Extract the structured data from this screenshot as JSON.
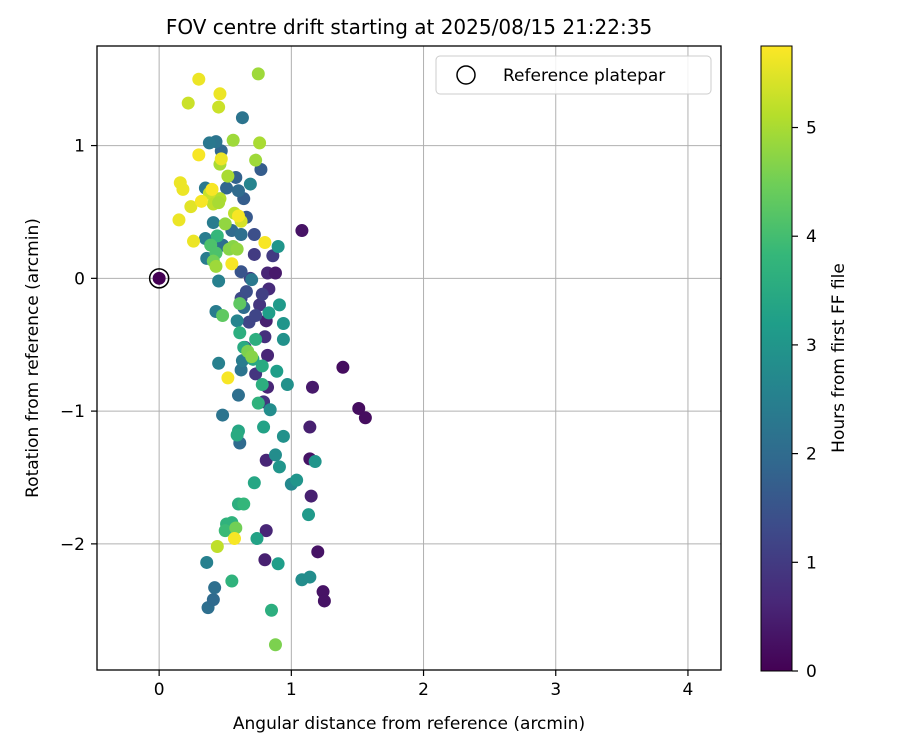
{
  "chart_data": {
    "type": "scatter",
    "title": "FOV centre drift starting at 2025/08/15 21:22:35",
    "xlabel": "Angular distance from reference (arcmin)",
    "ylabel": "Rotation from reference (arcmin)",
    "xlim": [
      -0.47,
      4.25
    ],
    "ylim": [
      -2.95,
      1.75
    ],
    "xticks": [
      0,
      1,
      2,
      3,
      4
    ],
    "yticks": [
      -2,
      -1,
      0,
      1
    ],
    "ytick_labels": [
      "−2",
      "−1",
      "0",
      "1"
    ],
    "grid": true,
    "legend": {
      "label": "Reference platepar",
      "placement": "top-right"
    },
    "reference_point": {
      "x": 0,
      "y": 0
    },
    "colorbar": {
      "label": "Hours from first FF file",
      "colormap": "viridis",
      "min": 0,
      "max": 5.75,
      "ticks": [
        0,
        1,
        2,
        3,
        4,
        5
      ]
    },
    "points": [
      {
        "x": 1.08,
        "y": 0.36,
        "c": 0.3
      },
      {
        "x": 1.39,
        "y": -0.67,
        "c": 0.2
      },
      {
        "x": 1.51,
        "y": -0.98,
        "c": 0.2
      },
      {
        "x": 1.56,
        "y": -1.05,
        "c": 0.2
      },
      {
        "x": 1.16,
        "y": -0.82,
        "c": 0.4
      },
      {
        "x": 1.14,
        "y": -1.12,
        "c": 0.5
      },
      {
        "x": 1.14,
        "y": -1.36,
        "c": 0.3
      },
      {
        "x": 1.15,
        "y": -1.64,
        "c": 0.5
      },
      {
        "x": 1.2,
        "y": -2.06,
        "c": 0.3
      },
      {
        "x": 1.24,
        "y": -2.36,
        "c": 0.3
      },
      {
        "x": 1.25,
        "y": -2.43,
        "c": 0.3
      },
      {
        "x": 0.81,
        "y": -1.37,
        "c": 0.6
      },
      {
        "x": 0.81,
        "y": -1.9,
        "c": 0.6
      },
      {
        "x": 0.8,
        "y": -2.12,
        "c": 0.5
      },
      {
        "x": 0.82,
        "y": 0.04,
        "c": 0.6
      },
      {
        "x": 0.88,
        "y": 0.04,
        "c": 0.4
      },
      {
        "x": 0.81,
        "y": -0.32,
        "c": 0.5
      },
      {
        "x": 0.82,
        "y": -0.58,
        "c": 0.6
      },
      {
        "x": 0.8,
        "y": -0.44,
        "c": 0.8
      },
      {
        "x": 0.79,
        "y": -0.93,
        "c": 0.9
      },
      {
        "x": 0.82,
        "y": -0.82,
        "c": 0.6
      },
      {
        "x": 0.73,
        "y": -0.72,
        "c": 0.9
      },
      {
        "x": 0.76,
        "y": -0.2,
        "c": 0.9
      },
      {
        "x": 0.83,
        "y": -0.08,
        "c": 0.7
      },
      {
        "x": 0.72,
        "y": 0.18,
        "c": 1.0
      },
      {
        "x": 0.69,
        "y": 0.0,
        "c": 1.0
      },
      {
        "x": 0.78,
        "y": -0.12,
        "c": 1.1
      },
      {
        "x": 0.86,
        "y": 0.17,
        "c": 1.0
      },
      {
        "x": 0.68,
        "y": -0.33,
        "c": 1.2
      },
      {
        "x": 0.73,
        "y": -0.28,
        "c": 1.2
      },
      {
        "x": 0.65,
        "y": -0.52,
        "c": 1.3
      },
      {
        "x": 0.62,
        "y": -0.15,
        "c": 1.3
      },
      {
        "x": 0.66,
        "y": -0.1,
        "c": 1.4
      },
      {
        "x": 0.62,
        "y": 0.05,
        "c": 1.5
      },
      {
        "x": 0.72,
        "y": 0.33,
        "c": 1.4
      },
      {
        "x": 0.66,
        "y": 0.46,
        "c": 1.6
      },
      {
        "x": 0.64,
        "y": 0.6,
        "c": 1.7
      },
      {
        "x": 0.77,
        "y": 0.82,
        "c": 1.7
      },
      {
        "x": 0.58,
        "y": 0.76,
        "c": 1.8
      },
      {
        "x": 0.51,
        "y": 0.68,
        "c": 1.9
      },
      {
        "x": 0.47,
        "y": 0.96,
        "c": 1.9
      },
      {
        "x": 0.6,
        "y": 0.66,
        "c": 2.0
      },
      {
        "x": 0.55,
        "y": 0.36,
        "c": 2.0
      },
      {
        "x": 0.48,
        "y": 0.25,
        "c": 2.1
      },
      {
        "x": 0.62,
        "y": 0.33,
        "c": 2.1
      },
      {
        "x": 0.63,
        "y": 1.21,
        "c": 2.2
      },
      {
        "x": 0.43,
        "y": 1.03,
        "c": 2.2
      },
      {
        "x": 0.38,
        "y": 1.02,
        "c": 2.3
      },
      {
        "x": 0.35,
        "y": 0.68,
        "c": 2.3
      },
      {
        "x": 0.41,
        "y": 0.42,
        "c": 2.4
      },
      {
        "x": 0.35,
        "y": 0.3,
        "c": 2.4
      },
      {
        "x": 0.36,
        "y": 0.15,
        "c": 2.4
      },
      {
        "x": 0.45,
        "y": -0.02,
        "c": 2.5
      },
      {
        "x": 0.43,
        "y": -0.25,
        "c": 2.4
      },
      {
        "x": 0.45,
        "y": -0.64,
        "c": 2.5
      },
      {
        "x": 0.48,
        "y": -1.03,
        "c": 2.2
      },
      {
        "x": 0.6,
        "y": -0.88,
        "c": 2.1
      },
      {
        "x": 0.61,
        "y": -1.24,
        "c": 2.0
      },
      {
        "x": 0.62,
        "y": -0.69,
        "c": 2.2
      },
      {
        "x": 0.64,
        "y": -0.22,
        "c": 2.0
      },
      {
        "x": 0.59,
        "y": -0.32,
        "c": 2.6
      },
      {
        "x": 0.7,
        "y": -0.01,
        "c": 2.3
      },
      {
        "x": 0.63,
        "y": -0.62,
        "c": 2.4
      },
      {
        "x": 0.69,
        "y": 0.71,
        "c": 2.6
      },
      {
        "x": 0.36,
        "y": -2.14,
        "c": 2.5
      },
      {
        "x": 0.37,
        "y": -2.48,
        "c": 2.1
      },
      {
        "x": 0.41,
        "y": -2.42,
        "c": 2.0
      },
      {
        "x": 0.42,
        "y": -2.33,
        "c": 2.1
      },
      {
        "x": 0.84,
        "y": -0.99,
        "c": 2.8
      },
      {
        "x": 0.88,
        "y": -1.33,
        "c": 2.8
      },
      {
        "x": 0.94,
        "y": -1.19,
        "c": 2.9
      },
      {
        "x": 0.91,
        "y": -1.42,
        "c": 3.0
      },
      {
        "x": 0.97,
        "y": -0.8,
        "c": 2.9
      },
      {
        "x": 0.94,
        "y": -0.46,
        "c": 2.9
      },
      {
        "x": 0.94,
        "y": -0.34,
        "c": 3.0
      },
      {
        "x": 0.91,
        "y": -0.2,
        "c": 3.1
      },
      {
        "x": 0.83,
        "y": -0.26,
        "c": 3.2
      },
      {
        "x": 0.9,
        "y": 0.24,
        "c": 3.0
      },
      {
        "x": 0.89,
        "y": -0.7,
        "c": 3.2
      },
      {
        "x": 1.0,
        "y": -1.55,
        "c": 2.7
      },
      {
        "x": 1.04,
        "y": -1.52,
        "c": 3.0
      },
      {
        "x": 1.18,
        "y": -1.38,
        "c": 3.0
      },
      {
        "x": 1.13,
        "y": -1.78,
        "c": 3.1
      },
      {
        "x": 1.08,
        "y": -2.27,
        "c": 2.8
      },
      {
        "x": 1.14,
        "y": -2.25,
        "c": 2.8
      },
      {
        "x": 0.9,
        "y": -2.15,
        "c": 3.2
      },
      {
        "x": 0.74,
        "y": -1.96,
        "c": 3.3
      },
      {
        "x": 0.72,
        "y": -1.54,
        "c": 3.4
      },
      {
        "x": 0.79,
        "y": -1.12,
        "c": 3.3
      },
      {
        "x": 0.6,
        "y": -1.15,
        "c": 3.4
      },
      {
        "x": 0.59,
        "y": -1.18,
        "c": 3.5
      },
      {
        "x": 0.71,
        "y": -0.61,
        "c": 3.4
      },
      {
        "x": 0.73,
        "y": -0.46,
        "c": 3.6
      },
      {
        "x": 0.78,
        "y": -0.66,
        "c": 3.5
      },
      {
        "x": 0.78,
        "y": -0.8,
        "c": 3.6
      },
      {
        "x": 0.75,
        "y": -0.94,
        "c": 3.7
      },
      {
        "x": 0.61,
        "y": -0.41,
        "c": 3.6
      },
      {
        "x": 0.64,
        "y": -0.52,
        "c": 3.5
      },
      {
        "x": 0.6,
        "y": -1.7,
        "c": 3.6
      },
      {
        "x": 0.64,
        "y": -1.7,
        "c": 3.8
      },
      {
        "x": 0.55,
        "y": -1.84,
        "c": 3.7
      },
      {
        "x": 0.51,
        "y": -1.85,
        "c": 3.7
      },
      {
        "x": 0.5,
        "y": -1.9,
        "c": 3.9
      },
      {
        "x": 0.58,
        "y": -1.88,
        "c": 4.5
      },
      {
        "x": 0.55,
        "y": -2.28,
        "c": 3.7
      },
      {
        "x": 0.85,
        "y": -2.5,
        "c": 3.6
      },
      {
        "x": 0.88,
        "y": -2.76,
        "c": 4.6
      },
      {
        "x": 0.48,
        "y": -0.28,
        "c": 4.3
      },
      {
        "x": 0.61,
        "y": -0.19,
        "c": 4.3
      },
      {
        "x": 0.67,
        "y": -0.55,
        "c": 4.6
      },
      {
        "x": 0.7,
        "y": -0.59,
        "c": 4.7
      },
      {
        "x": 0.44,
        "y": 0.32,
        "c": 3.8
      },
      {
        "x": 0.39,
        "y": 0.25,
        "c": 4.1
      },
      {
        "x": 0.43,
        "y": 0.19,
        "c": 4.1
      },
      {
        "x": 0.41,
        "y": 0.13,
        "c": 4.5
      },
      {
        "x": 0.43,
        "y": 0.09,
        "c": 4.9
      },
      {
        "x": 0.53,
        "y": 0.22,
        "c": 4.7
      },
      {
        "x": 0.56,
        "y": 0.24,
        "c": 4.7
      },
      {
        "x": 0.59,
        "y": 0.22,
        "c": 4.8
      },
      {
        "x": 0.5,
        "y": 0.41,
        "c": 4.8
      },
      {
        "x": 0.57,
        "y": 0.49,
        "c": 5.2
      },
      {
        "x": 0.62,
        "y": 0.43,
        "c": 5.4
      },
      {
        "x": 0.52,
        "y": 0.77,
        "c": 5.0
      },
      {
        "x": 0.46,
        "y": 0.86,
        "c": 5.0
      },
      {
        "x": 0.46,
        "y": 0.6,
        "c": 5.1
      },
      {
        "x": 0.38,
        "y": 0.64,
        "c": 5.3
      },
      {
        "x": 0.41,
        "y": 0.56,
        "c": 5.2
      },
      {
        "x": 0.45,
        "y": 0.57,
        "c": 5.0
      },
      {
        "x": 0.56,
        "y": 1.04,
        "c": 4.9
      },
      {
        "x": 0.75,
        "y": 1.54,
        "c": 4.9
      },
      {
        "x": 0.76,
        "y": 1.02,
        "c": 5.0
      },
      {
        "x": 0.73,
        "y": 0.89,
        "c": 4.9
      },
      {
        "x": 0.45,
        "y": 1.29,
        "c": 5.3
      },
      {
        "x": 0.22,
        "y": 1.32,
        "c": 5.3
      },
      {
        "x": 0.3,
        "y": 1.5,
        "c": 5.6
      },
      {
        "x": 0.46,
        "y": 1.39,
        "c": 5.6
      },
      {
        "x": 0.3,
        "y": 0.93,
        "c": 5.7
      },
      {
        "x": 0.47,
        "y": 0.9,
        "c": 5.6
      },
      {
        "x": 0.16,
        "y": 0.72,
        "c": 5.6
      },
      {
        "x": 0.18,
        "y": 0.67,
        "c": 5.6
      },
      {
        "x": 0.15,
        "y": 0.44,
        "c": 5.6
      },
      {
        "x": 0.24,
        "y": 0.54,
        "c": 5.5
      },
      {
        "x": 0.32,
        "y": 0.58,
        "c": 5.7
      },
      {
        "x": 0.26,
        "y": 0.28,
        "c": 5.6
      },
      {
        "x": 0.4,
        "y": 0.67,
        "c": 5.7
      },
      {
        "x": 0.55,
        "y": 0.11,
        "c": 5.7
      },
      {
        "x": 0.6,
        "y": 0.47,
        "c": 5.7
      },
      {
        "x": 0.8,
        "y": 0.27,
        "c": 5.7
      },
      {
        "x": 0.52,
        "y": -0.75,
        "c": 5.7
      },
      {
        "x": 0.57,
        "y": -1.96,
        "c": 5.7
      },
      {
        "x": 0.44,
        "y": -2.02,
        "c": 5.2
      }
    ]
  }
}
